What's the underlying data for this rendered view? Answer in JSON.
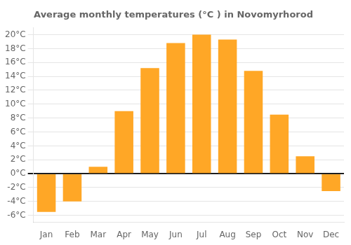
{
  "chart_data": {
    "type": "bar",
    "title": "Average monthly temperatures (°C ) in Novomyrhorod",
    "categories": [
      "Jan",
      "Feb",
      "Mar",
      "Apr",
      "May",
      "Jun",
      "Jul",
      "Aug",
      "Sep",
      "Oct",
      "Nov",
      "Dec"
    ],
    "values": [
      -5.5,
      -4.0,
      1.0,
      9.0,
      15.2,
      18.8,
      20.0,
      19.3,
      14.8,
      8.5,
      2.5,
      -2.5
    ],
    "color": "#FFA726",
    "ylim": [
      -7,
      21
    ],
    "yticks": [
      {
        "value": -6,
        "label": "-6°C"
      },
      {
        "value": -4,
        "label": "-4°C"
      },
      {
        "value": -2,
        "label": "-2°C"
      },
      {
        "value": 0,
        "label": "0°C"
      },
      {
        "value": 2,
        "label": "2°C"
      },
      {
        "value": 4,
        "label": "4°C"
      },
      {
        "value": 6,
        "label": "6°C"
      },
      {
        "value": 8,
        "label": "8°C"
      },
      {
        "value": 10,
        "label": "10°C"
      },
      {
        "value": 12,
        "label": "12°C"
      },
      {
        "value": 14,
        "label": "14°C"
      },
      {
        "value": 16,
        "label": "16°C"
      },
      {
        "value": 18,
        "label": "18°C"
      },
      {
        "value": 20,
        "label": "20°C"
      }
    ],
    "grid": true
  }
}
